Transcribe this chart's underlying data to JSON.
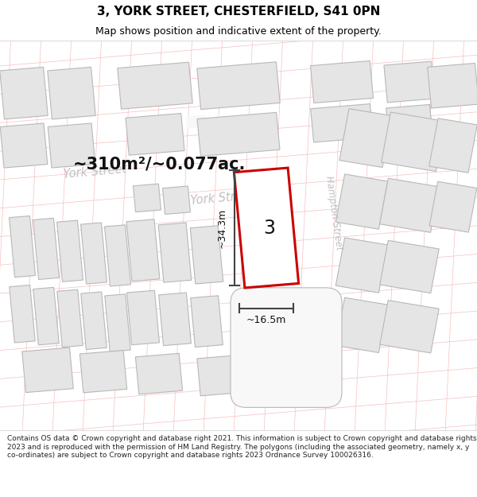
{
  "title": "3, YORK STREET, CHESTERFIELD, S41 0PN",
  "subtitle": "Map shows position and indicative extent of the property.",
  "footer": "Contains OS data © Crown copyright and database right 2021. This information is subject to Crown copyright and database rights 2023 and is reproduced with the permission of HM Land Registry. The polygons (including the associated geometry, namely x, y co-ordinates) are subject to Crown copyright and database rights 2023 Ordnance Survey 100026316.",
  "area_label": "~310m²/~0.077ac.",
  "height_label": "~34.3m",
  "width_label": "~16.5m",
  "number_label": "3",
  "map_bg": "#f8f8f8",
  "building_fill": "#e5e5e5",
  "building_outline": "#b8b8b8",
  "red_outline": "#cc0000",
  "plot_fill": "#ffffff",
  "street_color_light": "#f5c0c0",
  "street_label_color": "#c0c0c0",
  "title_color": "#000000",
  "footer_color": "#222222",
  "dim_line_color": "#444444",
  "title_fontsize": 11,
  "subtitle_fontsize": 9,
  "footer_fontsize": 6.5
}
